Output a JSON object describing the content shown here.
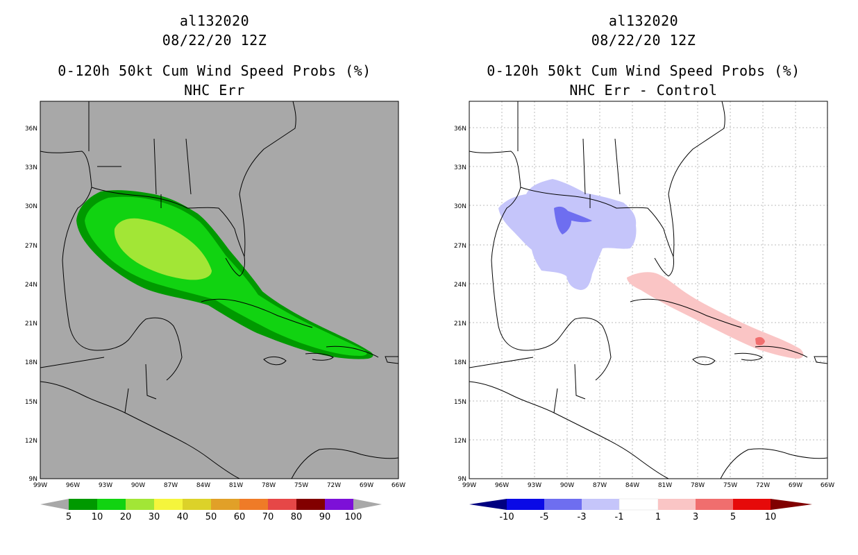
{
  "panels": [
    {
      "storm_id": "al132020",
      "init_time": "08/22/20 12Z",
      "product": "0-120h 50kt Cum Wind Speed Probs (%)",
      "subtitle": "NHC Err",
      "colorbar_labels": [
        "5",
        "10",
        "20",
        "30",
        "40",
        "50",
        "60",
        "70",
        "80",
        "90",
        "100"
      ],
      "colorbar_colors": [
        "#009900",
        "#11d311",
        "#a2e636",
        "#f5f53c",
        "#dcd229",
        "#e1a028",
        "#ef7b27",
        "#e64747",
        "#820000",
        "#7d10d8"
      ]
    },
    {
      "storm_id": "al132020",
      "init_time": "08/22/20 12Z",
      "product": "0-120h 50kt Cum Wind Speed Probs (%)",
      "subtitle": "NHC Err - Control",
      "colorbar_labels": [
        "-10",
        "-5",
        "-3",
        "-1",
        "1",
        "3",
        "5",
        "10"
      ],
      "colorbar_colors": [
        "#000080",
        "#0a0ae6",
        "#6e6ef0",
        "#c5c5fa",
        "#ffffff",
        "#fac5c5",
        "#f06e6e",
        "#e60a0a",
        "#800000"
      ]
    }
  ],
  "axes": {
    "lon_labels": [
      "99W",
      "96W",
      "93W",
      "90W",
      "87W",
      "84W",
      "81W",
      "78W",
      "75W",
      "72W",
      "69W",
      "66W"
    ],
    "lat_labels": [
      "9N",
      "12N",
      "15N",
      "18N",
      "21N",
      "24N",
      "27N",
      "30N",
      "33N",
      "36N"
    ]
  },
  "colors": {
    "land_background": "#a8a8a8",
    "prob_5": "#009900",
    "prob_10": "#11d311",
    "prob_20": "#a2e636",
    "diff_neg3": "#6e6ef0",
    "diff_neg1": "#c5c5fa",
    "diff_pos1": "#fac5c5",
    "diff_pos3": "#f06e6e"
  }
}
